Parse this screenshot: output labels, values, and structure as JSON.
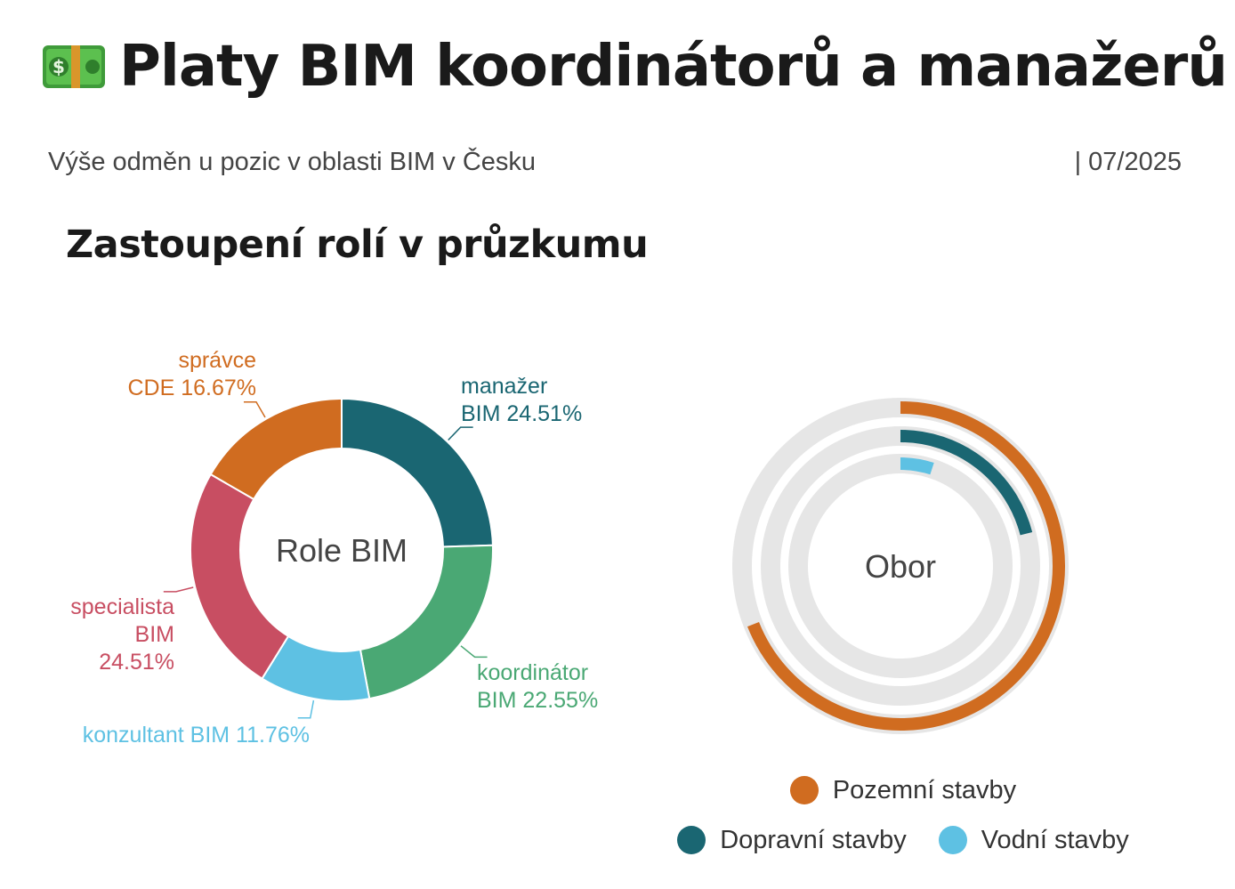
{
  "header": {
    "title": "Platy BIM koordinátorů a manažerů",
    "icon": "money-icon",
    "subtitle": "Výše odměn u pozic v oblasti BIM v Česku",
    "date": "| 07/2025"
  },
  "section": {
    "title": "Zastoupení rolí v průzkumu"
  },
  "colors": {
    "teal": "#1a6672",
    "green": "#4aa874",
    "lightblue": "#5ec1e3",
    "red": "#c84e62",
    "orange": "#d06c20",
    "track": "#e6e6e6"
  },
  "chart_data": [
    {
      "type": "pie",
      "variant": "donut",
      "center_label": "Role BIM",
      "slices": [
        {
          "label_lines": [
            "manažer",
            "BIM 24.51%"
          ],
          "name": "manažer BIM",
          "value": 24.51,
          "color": "#1a6672"
        },
        {
          "label_lines": [
            "koordinátor",
            "BIM 22.55%"
          ],
          "name": "koordinátor BIM",
          "value": 22.55,
          "color": "#4aa874"
        },
        {
          "label_lines": [
            "konzultant BIM 11.76%"
          ],
          "name": "konzultant BIM",
          "value": 11.76,
          "color": "#5ec1e3"
        },
        {
          "label_lines": [
            "specialista",
            "BIM",
            "24.51%"
          ],
          "name": "specialista BIM",
          "value": 24.51,
          "color": "#c84e62"
        },
        {
          "label_lines": [
            "správce",
            "CDE 16.67%"
          ],
          "name": "správce CDE",
          "value": 16.67,
          "color": "#d06c20"
        }
      ]
    },
    {
      "type": "radial_bar",
      "center_label": "Obor",
      "max": 100,
      "series": [
        {
          "name": "Pozemní stavby",
          "value": 69,
          "color": "#d06c20"
        },
        {
          "name": "Dopravní stavby",
          "value": 21,
          "color": "#1a6672"
        },
        {
          "name": "Vodní stavby",
          "value": 5,
          "color": "#5ec1e3"
        }
      ],
      "legend": [
        [
          "Pozemní stavby"
        ],
        [
          "Dopravní stavby",
          "Vodní stavby"
        ]
      ]
    }
  ]
}
